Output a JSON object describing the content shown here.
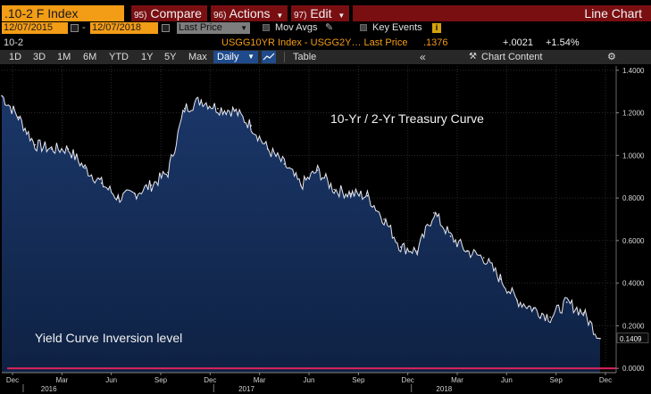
{
  "toolbar": {
    "security": ".10-2 F Index",
    "compare_num": "95)",
    "compare_label": "Compare",
    "actions_num": "96)",
    "actions_label": "Actions",
    "edit_num": "97)",
    "edit_label": "Edit",
    "view_label": "Line Chart"
  },
  "settings": {
    "start_date": "12/07/2015",
    "end_date": "12/07/2018",
    "field": "Last Price",
    "mov_avgs": "Mov Avgs",
    "key_events": "Key Events"
  },
  "info_bar": {
    "ticker": "10-2",
    "series_desc": "USGG10YR Index - USGG2Y… Last Price",
    "last_value": ".1376",
    "change": "+.0021",
    "change_pct": "+1.54%"
  },
  "range_bar": {
    "ranges": [
      "1D",
      "3D",
      "1M",
      "6M",
      "YTD",
      "1Y",
      "5Y",
      "Max"
    ],
    "frequency": "Daily",
    "table_label": "Table",
    "chart_content": "Chart Content"
  },
  "chart_data": {
    "type": "area",
    "title": "10-Yr / 2-Yr Treasury Curve",
    "annotation": "Yield Curve Inversion level",
    "last_label": "0.1409",
    "ylim": [
      -0.02,
      1.42
    ],
    "y_ticks": [
      "1.4000",
      "1.2000",
      "1.0000",
      "0.8000",
      "0.6000",
      "0.4000",
      "0.2000",
      "0.0000"
    ],
    "y_tick_values": [
      1.4,
      1.2,
      1.0,
      0.8,
      0.6,
      0.4,
      0.2,
      0.0
    ],
    "x_months": [
      "Dec",
      "Mar",
      "Jun",
      "Sep",
      "Dec",
      "Mar",
      "Jun",
      "Sep",
      "Dec",
      "Mar",
      "Jun",
      "Sep",
      "Dec"
    ],
    "x_years": [
      "2016",
      "2017",
      "2018"
    ],
    "x": [
      "2015-12",
      "2016-01",
      "2016-02",
      "2016-03",
      "2016-04",
      "2016-05",
      "2016-06",
      "2016-07",
      "2016-08",
      "2016-09",
      "2016-10",
      "2016-11",
      "2016-12",
      "2017-01",
      "2017-02",
      "2017-03",
      "2017-04",
      "2017-05",
      "2017-06",
      "2017-07",
      "2017-08",
      "2017-09",
      "2017-10",
      "2017-11",
      "2017-12",
      "2018-01",
      "2018-02",
      "2018-03",
      "2018-04",
      "2018-05",
      "2018-06",
      "2018-07",
      "2018-08",
      "2018-09",
      "2018-10",
      "2018-11",
      "2018-12"
    ],
    "values": [
      1.28,
      1.18,
      1.05,
      1.03,
      1.03,
      0.94,
      0.87,
      0.8,
      0.82,
      0.86,
      0.92,
      1.22,
      1.26,
      1.22,
      1.21,
      1.14,
      1.03,
      0.96,
      0.86,
      0.93,
      0.84,
      0.82,
      0.81,
      0.7,
      0.57,
      0.55,
      0.73,
      0.62,
      0.55,
      0.52,
      0.42,
      0.32,
      0.28,
      0.24,
      0.31,
      0.26,
      0.14
    ],
    "threshold": 0.0
  },
  "colors": {
    "accent": "#f39c16",
    "menu_red": "#7a0f12",
    "line": "#e8e8f0",
    "fill": "#0f2347",
    "threshold": "#e0245e"
  }
}
